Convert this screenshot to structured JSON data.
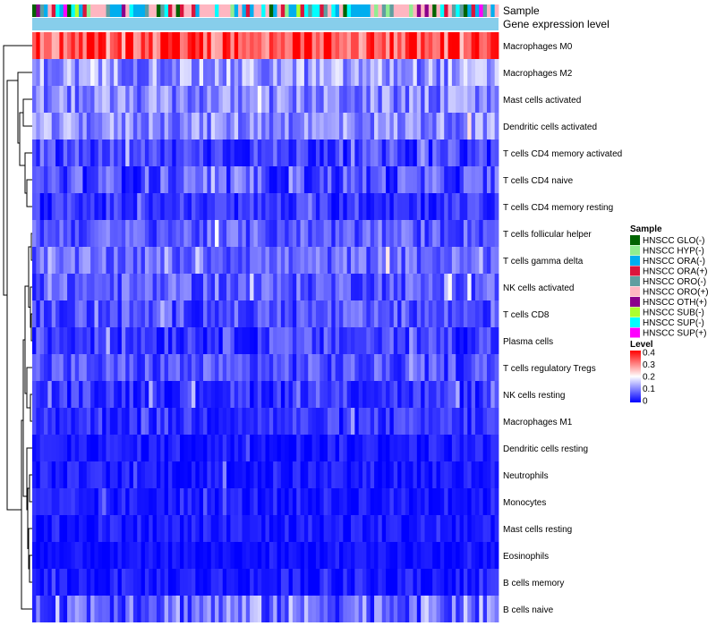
{
  "chart_data": {
    "type": "heatmap",
    "title": "",
    "annotation_tracks": [
      "Sample",
      "Gene expression level"
    ],
    "rows": [
      "Macrophages M0",
      "Macrophages M2",
      "Mast cells activated",
      "Dendritic cells activated",
      "T cells CD4 memory activated",
      "T cells CD4 naive",
      "T cells CD4 memory resting",
      "T cells follicular helper",
      "T cells gamma delta",
      "NK cells activated",
      "T cells CD8",
      "Plasma cells",
      "T cells regulatory  Tregs",
      "NK cells resting",
      "Macrophages M1",
      "Dendritic cells resting",
      "Neutrophils",
      "Monocytes",
      "Mast cells resting",
      "Eosinophils",
      "B cells memory",
      "B cells naive"
    ],
    "row_mean_level": [
      0.34,
      0.12,
      0.1,
      0.11,
      0.05,
      0.06,
      0.04,
      0.07,
      0.08,
      0.07,
      0.06,
      0.05,
      0.06,
      0.04,
      0.04,
      0.02,
      0.02,
      0.02,
      0.02,
      0.01,
      0.02,
      0.09
    ],
    "row_spread": [
      0.1,
      0.07,
      0.06,
      0.06,
      0.05,
      0.06,
      0.04,
      0.05,
      0.05,
      0.05,
      0.05,
      0.05,
      0.05,
      0.04,
      0.04,
      0.03,
      0.03,
      0.03,
      0.03,
      0.02,
      0.03,
      0.08
    ],
    "n_samples": 120,
    "sample_legend": {
      "title": "Sample",
      "entries": [
        {
          "label": "HNSCC GLO(-)",
          "color": "#006400"
        },
        {
          "label": "HNSCC HYP(-)",
          "color": "#90EE90"
        },
        {
          "label": "HNSCC ORA(-)",
          "color": "#00AEEF"
        },
        {
          "label": "HNSCC ORA(+)",
          "color": "#DC143C"
        },
        {
          "label": "HNSCC ORO(-)",
          "color": "#5F9EA0"
        },
        {
          "label": "HNSCC ORO(+)",
          "color": "#FFB6C1"
        },
        {
          "label": "HNSCC OTH(+)",
          "color": "#8B008B"
        },
        {
          "label": "HNSCC SUB(-)",
          "color": "#ADFF2F"
        },
        {
          "label": "HNSCC SUP(-)",
          "color": "#00FFFF"
        },
        {
          "label": "HNSCC SUP(+)",
          "color": "#FF00FF"
        }
      ]
    },
    "level_legend": {
      "title": "Level",
      "ticks": [
        0.4,
        0.3,
        0.2,
        0.1,
        0
      ],
      "range": [
        0,
        0.4
      ],
      "colors": {
        "low": "#0000FF",
        "mid": "#FFFFFF",
        "high": "#FF0000"
      }
    },
    "gene_expression_level_color": "#87CEEB"
  }
}
